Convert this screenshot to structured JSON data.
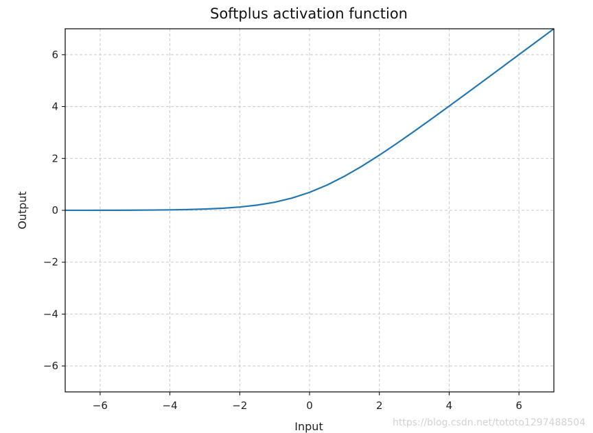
{
  "chart_data": {
    "type": "line",
    "title": "Softplus activation function",
    "xlabel": "Input",
    "ylabel": "Output",
    "xlim": [
      -7,
      7
    ],
    "ylim": [
      -7,
      7
    ],
    "xticks": [
      -6,
      -4,
      -2,
      0,
      2,
      4,
      6
    ],
    "yticks": [
      -6,
      -4,
      -2,
      0,
      2,
      4,
      6
    ],
    "xtick_labels": [
      "−6",
      "−4",
      "−2",
      "0",
      "2",
      "4",
      "6"
    ],
    "ytick_labels": [
      "−6",
      "−4",
      "−2",
      "0",
      "2",
      "4",
      "6"
    ],
    "grid": true,
    "grid_style": "dashed",
    "series": [
      {
        "color": "#1f77b4",
        "x": [
          -7,
          -6.5,
          -6,
          -5.5,
          -5,
          -4.5,
          -4,
          -3.5,
          -3,
          -2.5,
          -2,
          -1.5,
          -1,
          -0.5,
          0,
          0.5,
          1,
          1.5,
          2,
          2.5,
          3,
          3.5,
          4,
          4.5,
          5,
          5.5,
          6,
          6.5,
          7
        ],
        "y": [
          0.001,
          0.0015,
          0.0025,
          0.004,
          0.0067,
          0.011,
          0.018,
          0.03,
          0.049,
          0.079,
          0.127,
          0.201,
          0.313,
          0.474,
          0.693,
          0.974,
          1.313,
          1.701,
          2.127,
          2.579,
          3.049,
          3.53,
          4.018,
          4.511,
          5.007,
          5.504,
          6.002,
          6.502,
          7.001
        ]
      }
    ]
  },
  "watermark": "https://blog.csdn.net/tototo1297488504"
}
